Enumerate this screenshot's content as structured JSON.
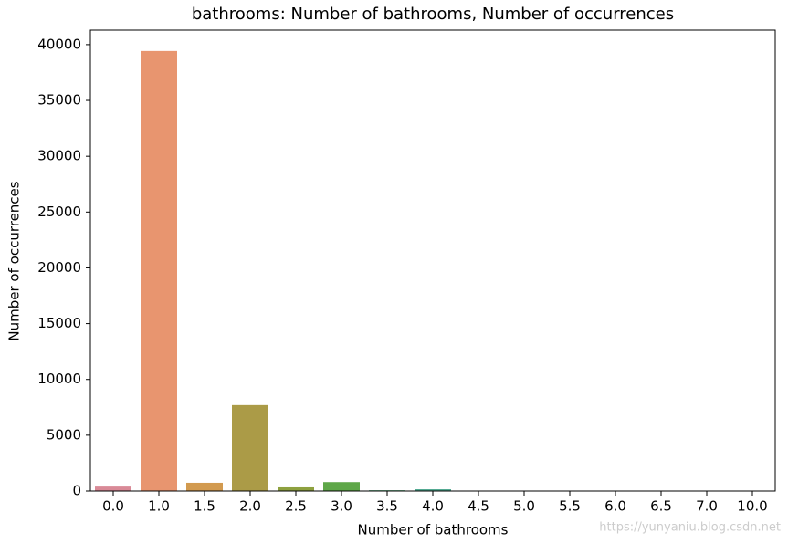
{
  "chart_data": {
    "type": "bar",
    "title": "bathrooms: Number of bathrooms, Number of occurrences",
    "xlabel": "Number of bathrooms",
    "ylabel": "Number of occurrences",
    "watermark": "https://yunyaniu.blog.csdn.net",
    "categories": [
      "0.0",
      "1.0",
      "1.5",
      "2.0",
      "2.5",
      "3.0",
      "3.5",
      "4.0",
      "4.5",
      "5.0",
      "5.5",
      "6.0",
      "6.5",
      "7.0",
      "10.0"
    ],
    "values": [
      400,
      39430,
      740,
      7700,
      330,
      800,
      70,
      160,
      30,
      20,
      5,
      5,
      2,
      2,
      1
    ],
    "colors": [
      "#d98a97",
      "#e8956f",
      "#d29a4f",
      "#ab9b47",
      "#8ea13f",
      "#5ea748",
      "#4ea774",
      "#4da68d",
      "#4ea4a3",
      "#50a1b5",
      "#5b9dcc",
      "#8d92d3",
      "#b286d5",
      "#d37bc4",
      "#da80a6"
    ],
    "ylim": [
      0,
      41300
    ],
    "yticks": [
      0,
      5000,
      10000,
      15000,
      20000,
      25000,
      30000,
      35000,
      40000
    ],
    "grid": false
  }
}
